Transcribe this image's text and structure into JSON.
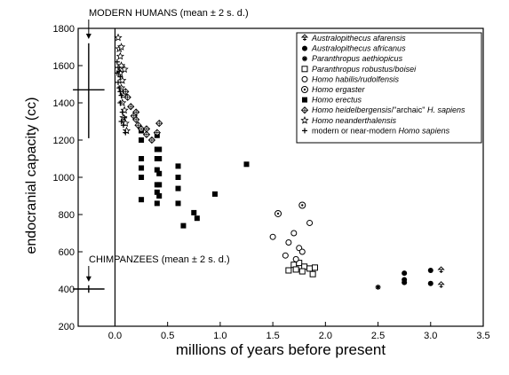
{
  "chart_data": {
    "type": "scatter",
    "xlabel": "millions of years before present",
    "ylabel": "endocranial capacity (cc)",
    "xlim": [
      -0.35,
      3.5
    ],
    "ylim": [
      200,
      1800
    ],
    "xticks": [
      0.0,
      0.5,
      1.0,
      1.5,
      2.0,
      2.5,
      3.0,
      3.5
    ],
    "xtick_labels": [
      "0.0",
      "0.5",
      "1.0",
      "1.5",
      "2.0",
      "2.5",
      "3.0",
      "3.5"
    ],
    "yticks": [
      200,
      400,
      600,
      800,
      1000,
      1200,
      1400,
      1600,
      1800
    ],
    "ytick_labels": [
      "200",
      "400",
      "600",
      "800",
      "1000",
      "1200",
      "1400",
      "1600",
      "1800"
    ],
    "legend_position": "top-right",
    "series": [
      {
        "name_parts": [
          [
            "Australopithecus",
            "i"
          ],
          [
            " afarensis",
            "i"
          ]
        ],
        "marker": "afarensis",
        "points": [
          [
            3.1,
            500
          ],
          [
            3.1,
            420
          ]
        ]
      },
      {
        "name_parts": [
          [
            "Australopithecus",
            "i"
          ],
          [
            " africanus",
            "i"
          ]
        ],
        "marker": "filled-circle",
        "points": [
          [
            2.75,
            485
          ],
          [
            2.75,
            450
          ],
          [
            2.75,
            435
          ],
          [
            3.0,
            500
          ],
          [
            3.0,
            430
          ]
        ]
      },
      {
        "name_parts": [
          [
            "Paranthropus aethiopicus",
            "i"
          ]
        ],
        "marker": "asterisk",
        "points": [
          [
            2.5,
            410
          ]
        ]
      },
      {
        "name_parts": [
          [
            "Paranthropus robustus/boisei",
            "i"
          ]
        ],
        "marker": "open-square",
        "points": [
          [
            1.7,
            530
          ],
          [
            1.75,
            540
          ],
          [
            1.8,
            520
          ],
          [
            1.85,
            510
          ],
          [
            1.88,
            480
          ],
          [
            1.72,
            505
          ],
          [
            1.65,
            500
          ],
          [
            1.78,
            495
          ],
          [
            1.9,
            515
          ]
        ]
      },
      {
        "name_parts": [
          [
            "Homo habilis/rudolfensis",
            "i"
          ]
        ],
        "marker": "open-circle",
        "points": [
          [
            1.5,
            680
          ],
          [
            1.65,
            650
          ],
          [
            1.7,
            700
          ],
          [
            1.75,
            620
          ],
          [
            1.78,
            600
          ],
          [
            1.85,
            755
          ],
          [
            1.62,
            580
          ],
          [
            1.72,
            560
          ]
        ]
      },
      {
        "name_parts": [
          [
            "Homo ergaster",
            "i"
          ]
        ],
        "marker": "dot-circle",
        "points": [
          [
            1.55,
            805
          ],
          [
            1.78,
            850
          ]
        ]
      },
      {
        "name_parts": [
          [
            "Homo erectus",
            "i"
          ]
        ],
        "marker": "filled-square",
        "points": [
          [
            0.25,
            1250
          ],
          [
            0.25,
            1200
          ],
          [
            0.25,
            1100
          ],
          [
            0.25,
            1050
          ],
          [
            0.25,
            1000
          ],
          [
            0.25,
            880
          ],
          [
            0.4,
            1225
          ],
          [
            0.4,
            1150
          ],
          [
            0.4,
            1100
          ],
          [
            0.4,
            1040
          ],
          [
            0.4,
            960
          ],
          [
            0.4,
            920
          ],
          [
            0.4,
            860
          ],
          [
            0.42,
            1150
          ],
          [
            0.42,
            1100
          ],
          [
            0.42,
            1020
          ],
          [
            0.42,
            960
          ],
          [
            0.42,
            900
          ],
          [
            0.6,
            1060
          ],
          [
            0.6,
            1000
          ],
          [
            0.6,
            940
          ],
          [
            0.6,
            860
          ],
          [
            0.65,
            740
          ],
          [
            0.75,
            810
          ],
          [
            0.78,
            780
          ],
          [
            0.95,
            910
          ],
          [
            1.25,
            1070
          ]
        ]
      },
      {
        "name_parts": [
          [
            "Homo heidelbergensis",
            "i"
          ],
          [
            "/\"archaic\" ",
            "n"
          ],
          [
            "H. sapiens",
            "i"
          ]
        ],
        "marker": "diamond-cross",
        "points": [
          [
            0.1,
            1460
          ],
          [
            0.12,
            1430
          ],
          [
            0.15,
            1380
          ],
          [
            0.18,
            1330
          ],
          [
            0.2,
            1310
          ],
          [
            0.22,
            1280
          ],
          [
            0.25,
            1260
          ],
          [
            0.3,
            1230
          ],
          [
            0.35,
            1200
          ],
          [
            0.3,
            1260
          ],
          [
            0.4,
            1240
          ],
          [
            0.42,
            1290
          ],
          [
            0.2,
            1350
          ]
        ]
      },
      {
        "name_parts": [
          [
            "Homo neanderthalensis",
            "i"
          ]
        ],
        "marker": "open-star",
        "points": [
          [
            0.03,
            1750
          ],
          [
            0.04,
            1690
          ],
          [
            0.05,
            1650
          ],
          [
            0.06,
            1600
          ],
          [
            0.05,
            1560
          ],
          [
            0.07,
            1520
          ],
          [
            0.06,
            1480
          ],
          [
            0.08,
            1440
          ],
          [
            0.07,
            1400
          ],
          [
            0.09,
            1360
          ],
          [
            0.08,
            1320
          ],
          [
            0.1,
            1290
          ],
          [
            0.11,
            1250
          ],
          [
            0.06,
            1700
          ],
          [
            0.09,
            1580
          ]
        ]
      },
      {
        "name_parts": [
          [
            "modern or near-modern ",
            "n"
          ],
          [
            "Homo sapiens",
            "i"
          ]
        ],
        "marker": "plus",
        "points": [
          [
            0.02,
            1620
          ],
          [
            0.03,
            1590
          ],
          [
            0.04,
            1570
          ],
          [
            0.05,
            1540
          ],
          [
            0.03,
            1510
          ],
          [
            0.04,
            1480
          ],
          [
            0.06,
            1440
          ],
          [
            0.05,
            1400
          ],
          [
            0.07,
            1350
          ],
          [
            0.06,
            1300
          ],
          [
            0.08,
            1280
          ],
          [
            0.09,
            1320
          ],
          [
            0.1,
            1240
          ],
          [
            0.05,
            1460
          ],
          [
            0.02,
            1560
          ]
        ]
      }
    ],
    "reference_ranges": [
      {
        "label": "MODERN HUMANS (mean ± 2 s. d.)",
        "x": -0.25,
        "mean": 1470,
        "low": 1210,
        "high": 1720,
        "halfwidth": 0.15
      },
      {
        "label": "CHIMPANZEES (mean ± 2 s. d.)",
        "x": -0.25,
        "mean": 400,
        "low": 380,
        "high": 420,
        "halfwidth": 0.15
      }
    ]
  }
}
